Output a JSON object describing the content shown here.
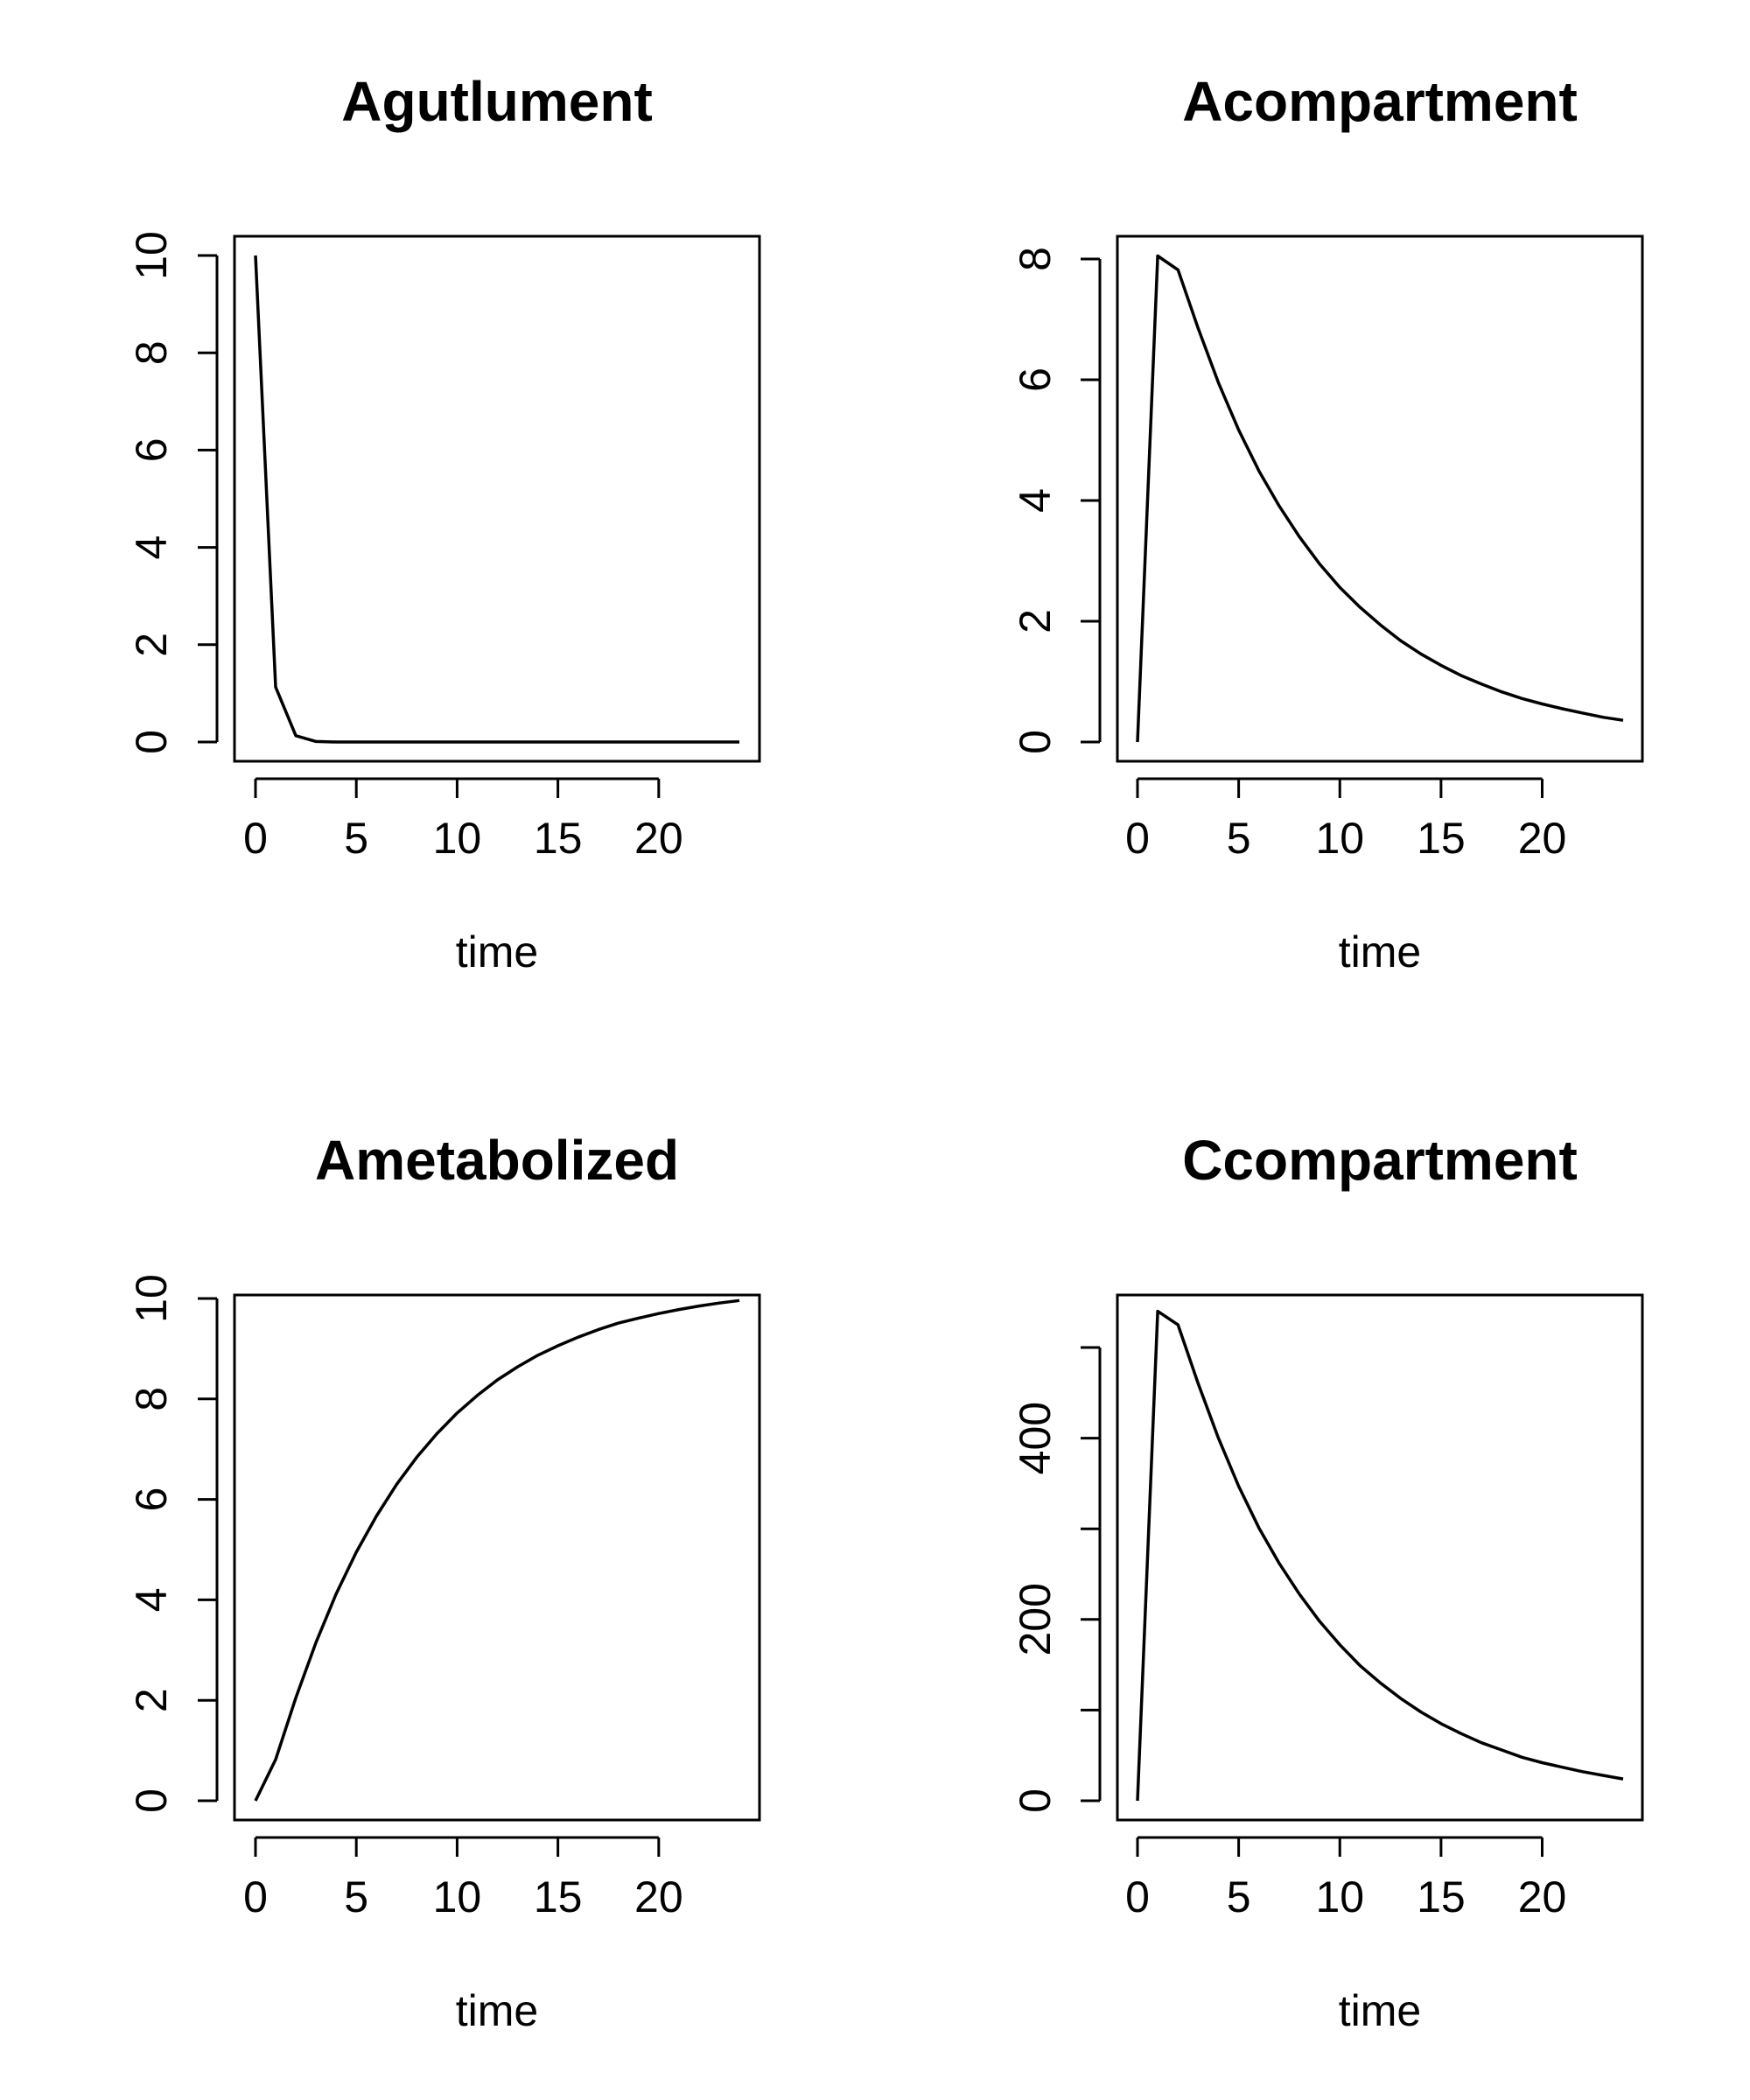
{
  "chart_data": [
    {
      "type": "line",
      "title": "Agutlument",
      "xlabel": "time",
      "ylabel": "",
      "xlim": [
        0,
        24
      ],
      "ylim": [
        0,
        10
      ],
      "xticks": [
        0,
        5,
        10,
        15,
        20
      ],
      "yticks": [
        0,
        2,
        4,
        6,
        8,
        10
      ],
      "x": [
        0,
        1,
        2,
        3,
        4,
        5,
        6,
        7,
        8,
        9,
        10,
        11,
        12,
        13,
        14,
        15,
        16,
        17,
        18,
        19,
        20,
        21,
        22,
        23,
        24
      ],
      "series": [
        {
          "values": [
            10,
            1.13,
            0.13,
            0.01,
            0,
            0,
            0,
            0,
            0,
            0,
            0,
            0,
            0,
            0,
            0,
            0,
            0,
            0,
            0,
            0,
            0,
            0,
            0,
            0,
            0
          ]
        }
      ]
    },
    {
      "type": "line",
      "title": "Acompartment",
      "xlabel": "time",
      "ylabel": "",
      "xlim": [
        0,
        24
      ],
      "ylim": [
        0,
        8
      ],
      "xticks": [
        0,
        5,
        10,
        15,
        20
      ],
      "yticks": [
        0,
        2,
        4,
        6,
        8
      ],
      "x": [
        0,
        1,
        2,
        3,
        4,
        5,
        6,
        7,
        8,
        9,
        10,
        11,
        12,
        13,
        14,
        15,
        16,
        17,
        18,
        19,
        20,
        21,
        22,
        23,
        24
      ],
      "series": [
        {
          "values": [
            0,
            8.05,
            7.82,
            6.85,
            5.95,
            5.17,
            4.49,
            3.91,
            3.4,
            2.95,
            2.56,
            2.23,
            1.94,
            1.68,
            1.46,
            1.27,
            1.1,
            0.96,
            0.83,
            0.72,
            0.63,
            0.55,
            0.48,
            0.41,
            0.36
          ]
        }
      ]
    },
    {
      "type": "line",
      "title": "Ametabolized",
      "xlabel": "time",
      "ylabel": "",
      "xlim": [
        0,
        24
      ],
      "ylim": [
        0,
        10
      ],
      "xticks": [
        0,
        5,
        10,
        15,
        20
      ],
      "yticks": [
        0,
        2,
        4,
        6,
        8,
        10
      ],
      "x": [
        0,
        1,
        2,
        3,
        4,
        5,
        6,
        7,
        8,
        9,
        10,
        11,
        12,
        13,
        14,
        15,
        16,
        17,
        18,
        19,
        20,
        21,
        22,
        23,
        24
      ],
      "series": [
        {
          "values": [
            0,
            0.82,
            2.05,
            3.15,
            4.12,
            4.95,
            5.67,
            6.3,
            6.84,
            7.31,
            7.72,
            8.07,
            8.38,
            8.64,
            8.87,
            9.06,
            9.23,
            9.38,
            9.51,
            9.61,
            9.7,
            9.78,
            9.85,
            9.91,
            9.96
          ]
        }
      ]
    },
    {
      "type": "line",
      "title": "Ccompartment",
      "xlabel": "time",
      "ylabel": "",
      "xlim": [
        0,
        24
      ],
      "ylim": [
        0,
        500
      ],
      "xticks": [
        0,
        5,
        10,
        15,
        20
      ],
      "yticks": [
        0,
        100,
        200,
        300,
        400,
        500
      ],
      "ytick_labels": [
        "0",
        "",
        "200",
        "",
        "400",
        ""
      ],
      "x": [
        0,
        1,
        2,
        3,
        4,
        5,
        6,
        7,
        8,
        9,
        10,
        11,
        12,
        13,
        14,
        15,
        16,
        17,
        18,
        19,
        20,
        21,
        22,
        23,
        24
      ],
      "series": [
        {
          "values": [
            0,
            540,
            525,
            460,
            400,
            347,
            301,
            262,
            228,
            198,
            172,
            149,
            130,
            113,
            98,
            85,
            74,
            64,
            56,
            48,
            42,
            37,
            32,
            28,
            24
          ]
        }
      ]
    }
  ]
}
